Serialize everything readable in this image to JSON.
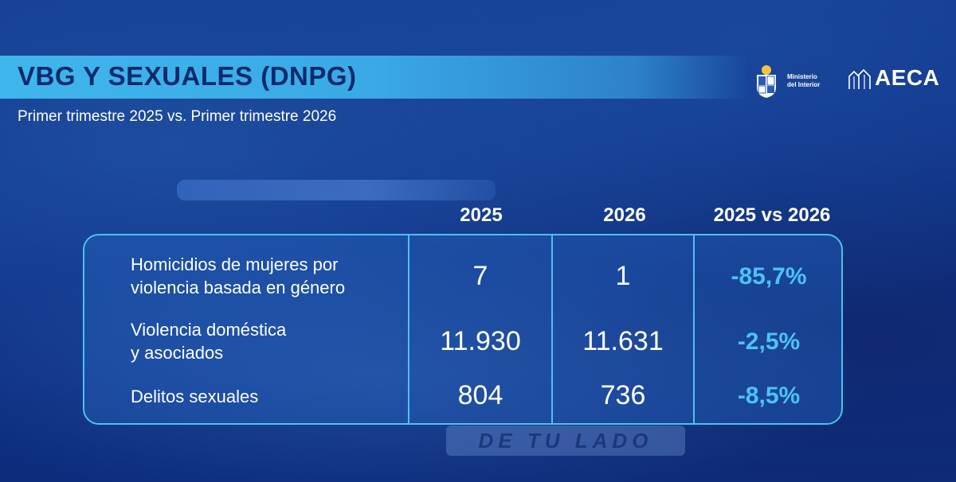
{
  "header": {
    "title": "VBG Y SEXUALES (DNPG)",
    "subtitle": "Primer trimestre 2025 vs. Primer trimestre 2026"
  },
  "logos": {
    "ministerio_line1": "Ministerio",
    "ministerio_line2": "del Interior",
    "aeca": "AECA"
  },
  "background_text": "DE TU LADO",
  "colors": {
    "background": "#0d2f84",
    "title_bar": "#3fb6ec",
    "title_text": "#0b2a6b",
    "table_border": "#4ec0f0",
    "percent": "#4cc3f5"
  },
  "chart_data": {
    "type": "table",
    "columns": [
      "2025",
      "2026",
      "2025 vs 2026"
    ],
    "rows": [
      {
        "label_line1": "Homicidios de mujeres por",
        "label_line2": "violencia basada en género",
        "v2025": "7",
        "v2026": "1",
        "change": "-85,7%"
      },
      {
        "label_line1": "Violencia doméstica",
        "label_line2": "y asociados",
        "v2025": "11.930",
        "v2026": "11.631",
        "change": "-2,5%"
      },
      {
        "label_line1": "Delitos sexuales",
        "label_line2": "",
        "v2025": "804",
        "v2026": "736",
        "change": "-8,5%"
      }
    ]
  }
}
